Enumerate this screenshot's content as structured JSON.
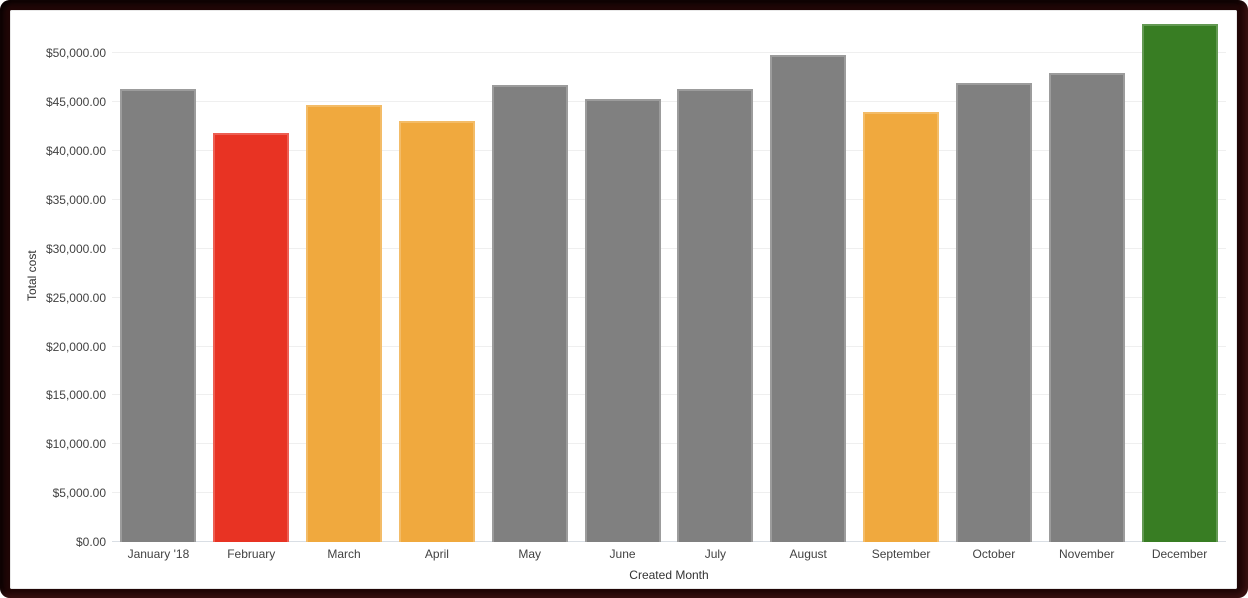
{
  "frame": {
    "border_color": "#200606",
    "card_background": "#ffffff"
  },
  "chart_data": {
    "type": "bar",
    "title": "",
    "xlabel": "Created Month",
    "ylabel": "Total cost",
    "categories": [
      "January '18",
      "February",
      "March",
      "April",
      "May",
      "June",
      "July",
      "August",
      "September",
      "October",
      "November",
      "December"
    ],
    "values": [
      46400,
      41900,
      44700,
      43100,
      46800,
      45300,
      46300,
      49800,
      44000,
      47000,
      48000,
      53000
    ],
    "bar_colors": [
      "#808080",
      "#e83323",
      "#f0a93e",
      "#f0a93e",
      "#808080",
      "#808080",
      "#808080",
      "#808080",
      "#f0a93e",
      "#808080",
      "#808080",
      "#387d23"
    ],
    "ylim": [
      0,
      53000
    ],
    "yticks": [
      0,
      5000,
      10000,
      15000,
      20000,
      25000,
      30000,
      35000,
      40000,
      45000,
      50000
    ],
    "ytick_labels": [
      "$0.00",
      "$5,000.00",
      "$10,000.00",
      "$15,000.00",
      "$20,000.00",
      "$25,000.00",
      "$30,000.00",
      "$35,000.00",
      "$40,000.00",
      "$45,000.00",
      "$50,000.00"
    ],
    "grid": true,
    "legend": "none",
    "palette": {
      "default": "#808080",
      "red": "#e83323",
      "orange": "#f0a93e",
      "green": "#387d23",
      "gridline": "#efefef",
      "baseline": "#d9dee4"
    }
  }
}
